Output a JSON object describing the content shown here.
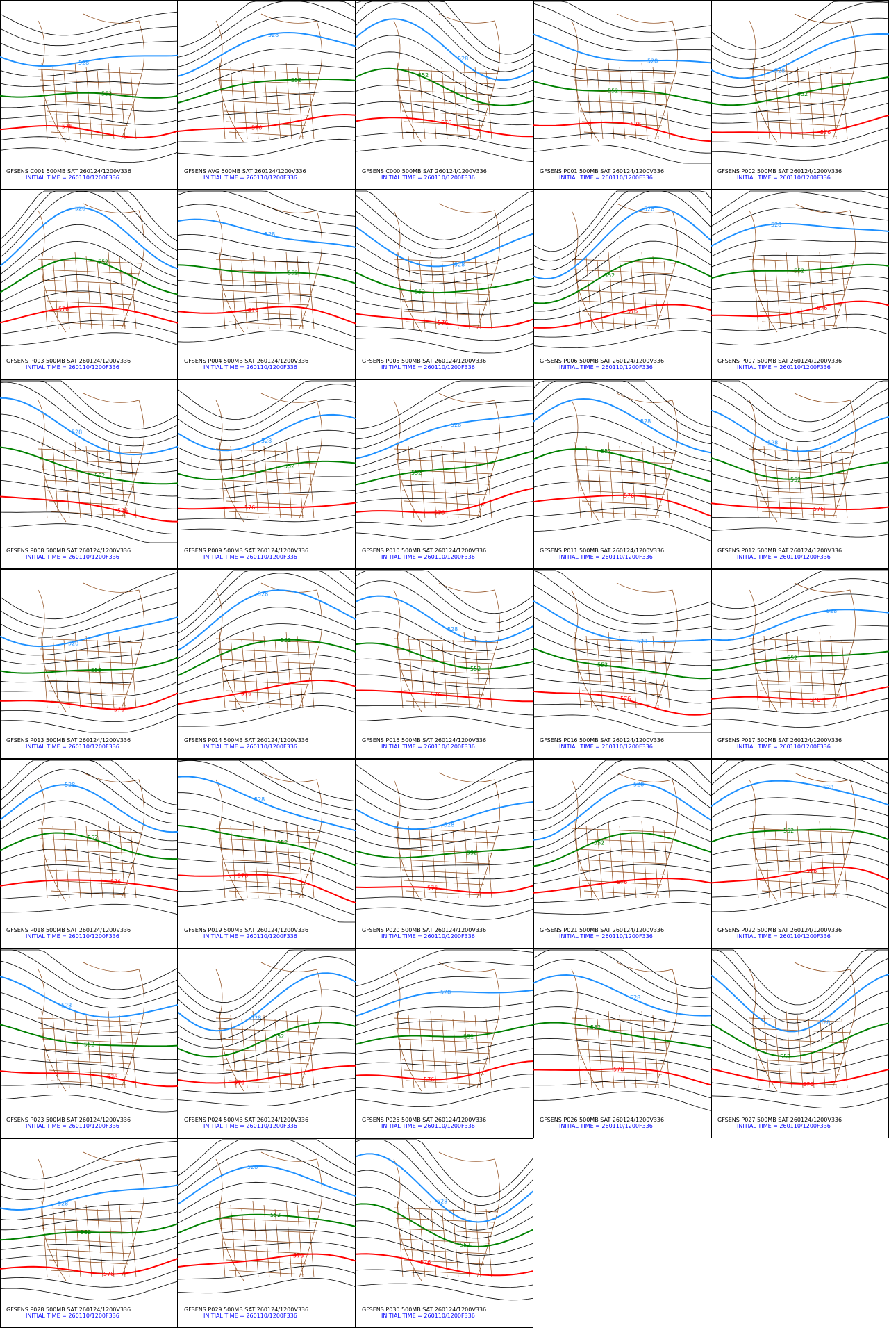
{
  "contour_labels": [
    "528",
    "552",
    "576"
  ],
  "panels": [
    {
      "title": "GFSENS C001 500MB SAT 260124/1200V336",
      "init": "INITIAL TIME = 260110/1200F336"
    },
    {
      "title": "GFSENS AVG 500MB SAT 260124/1200V336",
      "init": "INITIAL TIME = 260110/1200F336"
    },
    {
      "title": "GFSENS C000 500MB SAT 260124/1200V336",
      "init": "INITIAL TIME = 260110/1200F336"
    },
    {
      "title": "GFSENS P001 500MB SAT 260124/1200V336",
      "init": "INITIAL TIME = 260110/1200F336"
    },
    {
      "title": "GFSENS P002 500MB SAT 260124/1200V336",
      "init": "INITIAL TIME = 260110/1200F336"
    },
    {
      "title": "GFSENS P003 500MB SAT 260124/1200V336",
      "init": "INITIAL TIME = 260110/1200F336"
    },
    {
      "title": "GFSENS P004 500MB SAT 260124/1200V336",
      "init": "INITIAL TIME = 260110/1200F336"
    },
    {
      "title": "GFSENS P005 500MB SAT 260124/1200V336",
      "init": "INITIAL TIME = 260110/1200F336"
    },
    {
      "title": "GFSENS P006 500MB SAT 260124/1200V336",
      "init": "INITIAL TIME = 260110/1200F336"
    },
    {
      "title": "GFSENS P007 500MB SAT 260124/1200V336",
      "init": "INITIAL TIME = 260110/1200F336"
    },
    {
      "title": "GFSENS P008 500MB SAT 260124/1200V336",
      "init": "INITIAL TIME = 260110/1200F336"
    },
    {
      "title": "GFSENS P009 500MB SAT 260124/1200V336",
      "init": "INITIAL TIME = 260110/1200F336"
    },
    {
      "title": "GFSENS P010 500MB SAT 260124/1200V336",
      "init": "INITIAL TIME = 260110/1200F336"
    },
    {
      "title": "GFSENS P011 500MB SAT 260124/1200V336",
      "init": "INITIAL TIME = 260110/1200F336"
    },
    {
      "title": "GFSENS P012 500MB SAT 260124/1200V336",
      "init": "INITIAL TIME = 260110/1200F336"
    },
    {
      "title": "GFSENS P013 500MB SAT 260124/1200V336",
      "init": "INITIAL TIME = 260110/1200F336"
    },
    {
      "title": "GFSENS P014 500MB SAT 260124/1200V336",
      "init": "INITIAL TIME = 260110/1200F336"
    },
    {
      "title": "GFSENS P015 500MB SAT 260124/1200V336",
      "init": "INITIAL TIME = 260110/1200F336"
    },
    {
      "title": "GFSENS P016 500MB SAT 260124/1200V336",
      "init": "INITIAL TIME = 260110/1200F336"
    },
    {
      "title": "GFSENS P017 500MB SAT 260124/1200V336",
      "init": "INITIAL TIME = 260110/1200F336"
    },
    {
      "title": "GFSENS P018 500MB SAT 260124/1200V336",
      "init": "INITIAL TIME = 260110/1200F336"
    },
    {
      "title": "GFSENS P019 500MB SAT 260124/1200V336",
      "init": "INITIAL TIME = 260110/1200F336"
    },
    {
      "title": "GFSENS P020 500MB SAT 260124/1200V336",
      "init": "INITIAL TIME = 260110/1200F336"
    },
    {
      "title": "GFSENS P021 500MB SAT 260124/1200V336",
      "init": "INITIAL TIME = 260110/1200F336"
    },
    {
      "title": "GFSENS P022 500MB SAT 260124/1200V336",
      "init": "INITIAL TIME = 260110/1200F336"
    },
    {
      "title": "GFSENS P023 500MB SAT 260124/1200V336",
      "init": "INITIAL TIME = 260110/1200F336"
    },
    {
      "title": "GFSENS P024 500MB SAT 260124/1200V336",
      "init": "INITIAL TIME = 260110/1200F336"
    },
    {
      "title": "GFSENS P025 500MB SAT 260124/1200V336",
      "init": "INITIAL TIME = 260110/1200F336"
    },
    {
      "title": "GFSENS P026 500MB SAT 260124/1200V336",
      "init": "INITIAL TIME = 260110/1200F336"
    },
    {
      "title": "GFSENS P027 500MB SAT 260124/1200V336",
      "init": "INITIAL TIME = 260110/1200F336"
    },
    {
      "title": "GFSENS P028 500MB SAT 260124/1200V336",
      "init": "INITIAL TIME = 260110/1200F336"
    },
    {
      "title": "GFSENS P029 500MB SAT 260124/1200V336",
      "init": "INITIAL TIME = 260110/1200F336"
    },
    {
      "title": "GFSENS P030 500MB SAT 260124/1200V336",
      "init": "INITIAL TIME = 260110/1200F336"
    }
  ]
}
